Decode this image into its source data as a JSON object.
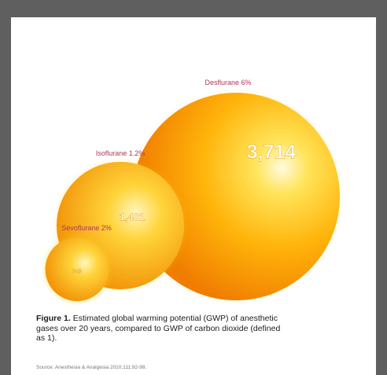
{
  "chart_data": {
    "type": "bubble",
    "series": [
      {
        "label": "Desflurane 6%",
        "value": "3,714",
        "gwp": 3714
      },
      {
        "label": "Isoflurane 1.2%",
        "value": "1,401",
        "gwp": 1401
      },
      {
        "label": "Sevoflurane 2%",
        "value": "349",
        "gwp": 349
      }
    ]
  },
  "caption": {
    "figure_label": "Figure 1.",
    "text": "Estimated global warming potential (GWP) of anesthetic gases over 20 years, compared to GWP of carbon dioxide (defined as 1)."
  },
  "source": "Source: Anesthesia & Analgesia 2010;111:92-98.",
  "colors": {
    "label_color": "#b0365a",
    "bubble_core": "#ffe45a",
    "bubble_edge": "#f07d00",
    "background": "#5f5f5f"
  }
}
